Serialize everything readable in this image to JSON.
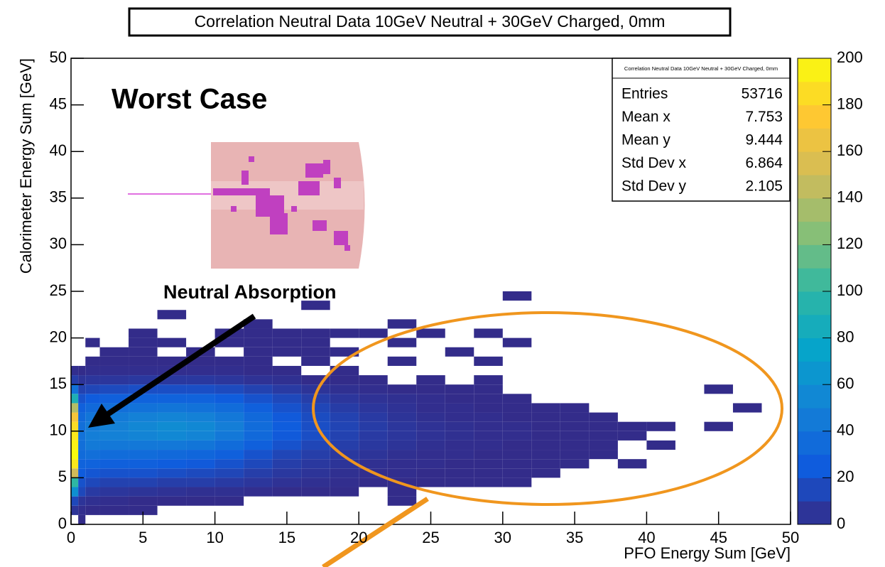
{
  "chart_data": {
    "type": "heatmap",
    "title": "Correlation Neutral Data 10GeV Neutral + 30GeV Charged, 0mm",
    "x_label": "PFO Energy Sum [GeV]",
    "y_label": "Calorimeter Energy Sum [GeV]",
    "xlim": [
      0,
      50
    ],
    "xticks": [
      0,
      5,
      10,
      15,
      20,
      25,
      30,
      35,
      40,
      45,
      50
    ],
    "ylim": [
      0,
      50
    ],
    "yticks": [
      0,
      5,
      10,
      15,
      20,
      25,
      30,
      35,
      40,
      45,
      50
    ],
    "zlim": [
      0,
      200
    ],
    "zticks": [
      0,
      20,
      40,
      60,
      80,
      100,
      120,
      140,
      160,
      180,
      200
    ],
    "palette": [
      "#352a87",
      "#0f5cdd",
      "#1481d6",
      "#06a4ca",
      "#2eb7a4",
      "#87bf77",
      "#d1bb59",
      "#fec832",
      "#f9fb0e"
    ],
    "xbins": [
      0,
      0.5,
      1,
      2,
      4,
      6,
      8,
      10,
      12,
      14,
      16,
      18,
      20,
      22,
      24,
      26,
      28,
      30,
      32,
      34,
      36,
      38,
      40,
      42,
      44,
      46,
      48,
      50
    ],
    "ybins": [
      0,
      1,
      2,
      3,
      4,
      5,
      6,
      7,
      8,
      9,
      10,
      11,
      12,
      13,
      14,
      15,
      16,
      17,
      18,
      19,
      20,
      21,
      22,
      23,
      24,
      25
    ],
    "z": [
      [
        0,
        1,
        0,
        0,
        0,
        0,
        0,
        0,
        0,
        0,
        0,
        0,
        0,
        0,
        0,
        0,
        0,
        0,
        0,
        0,
        0,
        0,
        0,
        0,
        0,
        0,
        0
      ],
      [
        5,
        2,
        1,
        1,
        1,
        0,
        0,
        0,
        0,
        0,
        0,
        0,
        0,
        0,
        0,
        0,
        0,
        0,
        0,
        0,
        0,
        0,
        0,
        0,
        0,
        0,
        0
      ],
      [
        15,
        5,
        3,
        2,
        1,
        1,
        1,
        1,
        0,
        0,
        0,
        0,
        0,
        1,
        0,
        0,
        0,
        0,
        0,
        0,
        0,
        0,
        0,
        0,
        0,
        0,
        0
      ],
      [
        60,
        15,
        8,
        6,
        5,
        4,
        3,
        3,
        2,
        1,
        1,
        1,
        0,
        1,
        0,
        0,
        0,
        0,
        0,
        0,
        0,
        0,
        0,
        0,
        0,
        0,
        0
      ],
      [
        100,
        20,
        15,
        12,
        12,
        10,
        10,
        8,
        6,
        4,
        3,
        2,
        1,
        1,
        1,
        1,
        1,
        1,
        0,
        0,
        0,
        0,
        0,
        0,
        0,
        0,
        0
      ],
      [
        150,
        25,
        22,
        20,
        20,
        18,
        16,
        14,
        10,
        7,
        5,
        3,
        2,
        2,
        1,
        1,
        1,
        1,
        1,
        0,
        0,
        0,
        0,
        0,
        0,
        0,
        0
      ],
      [
        190,
        30,
        30,
        28,
        28,
        26,
        24,
        20,
        15,
        10,
        7,
        5,
        3,
        2,
        2,
        1,
        1,
        1,
        1,
        1,
        0,
        1,
        0,
        0,
        0,
        0,
        0
      ],
      [
        200,
        35,
        38,
        36,
        36,
        34,
        32,
        28,
        20,
        14,
        10,
        7,
        5,
        3,
        2,
        2,
        1,
        1,
        1,
        1,
        1,
        0,
        0,
        0,
        0,
        0,
        0
      ],
      [
        195,
        38,
        45,
        44,
        44,
        44,
        42,
        36,
        28,
        20,
        14,
        10,
        7,
        5,
        3,
        2,
        2,
        1,
        1,
        1,
        1,
        0,
        1,
        0,
        0,
        0,
        0
      ],
      [
        190,
        40,
        48,
        50,
        52,
        55,
        52,
        44,
        34,
        24,
        18,
        12,
        8,
        6,
        4,
        3,
        2,
        2,
        1,
        1,
        1,
        1,
        0,
        0,
        0,
        0,
        0
      ],
      [
        185,
        38,
        46,
        50,
        54,
        58,
        55,
        48,
        36,
        26,
        18,
        13,
        9,
        6,
        4,
        3,
        2,
        2,
        1,
        1,
        1,
        1,
        1,
        0,
        1,
        0,
        0
      ],
      [
        170,
        34,
        42,
        46,
        50,
        52,
        50,
        44,
        34,
        24,
        17,
        12,
        8,
        5,
        3,
        2,
        2,
        1,
        1,
        1,
        1,
        0,
        0,
        0,
        0,
        0,
        0
      ],
      [
        140,
        28,
        34,
        38,
        40,
        42,
        40,
        36,
        28,
        20,
        14,
        9,
        6,
        4,
        2,
        2,
        1,
        1,
        1,
        1,
        0,
        0,
        0,
        0,
        0,
        1,
        0
      ],
      [
        90,
        20,
        25,
        28,
        30,
        30,
        30,
        26,
        20,
        15,
        10,
        6,
        4,
        3,
        2,
        1,
        1,
        1,
        0,
        0,
        0,
        0,
        0,
        0,
        0,
        0,
        0
      ],
      [
        40,
        12,
        14,
        16,
        18,
        18,
        18,
        16,
        12,
        8,
        5,
        3,
        2,
        1,
        1,
        1,
        1,
        0,
        0,
        0,
        0,
        0,
        0,
        0,
        1,
        0,
        0
      ],
      [
        10,
        5,
        6,
        6,
        7,
        7,
        7,
        6,
        4,
        3,
        1,
        1,
        1,
        0,
        1,
        0,
        1,
        0,
        0,
        0,
        0,
        0,
        0,
        0,
        0,
        0,
        0
      ],
      [
        2,
        1,
        2,
        2,
        2,
        2,
        2,
        2,
        1,
        1,
        0,
        1,
        0,
        0,
        0,
        0,
        0,
        0,
        0,
        0,
        0,
        0,
        0,
        0,
        0,
        0,
        0
      ],
      [
        0,
        0,
        1,
        1,
        1,
        1,
        1,
        1,
        1,
        0,
        1,
        0,
        0,
        1,
        0,
        0,
        1,
        0,
        0,
        0,
        0,
        0,
        0,
        0,
        0,
        0,
        0
      ],
      [
        0,
        0,
        0,
        1,
        1,
        0,
        1,
        0,
        1,
        1,
        1,
        1,
        0,
        0,
        0,
        1,
        0,
        0,
        0,
        0,
        0,
        0,
        0,
        0,
        0,
        0,
        0
      ],
      [
        0,
        0,
        1,
        0,
        1,
        1,
        0,
        1,
        1,
        1,
        1,
        0,
        0,
        1,
        0,
        0,
        0,
        1,
        0,
        0,
        0,
        0,
        0,
        0,
        0,
        0,
        0
      ],
      [
        0,
        0,
        0,
        0,
        1,
        0,
        0,
        1,
        1,
        1,
        1,
        1,
        1,
        0,
        1,
        0,
        1,
        0,
        0,
        0,
        0,
        0,
        0,
        0,
        0,
        0,
        0
      ],
      [
        0,
        0,
        0,
        0,
        0,
        0,
        0,
        0,
        1,
        0,
        0,
        0,
        0,
        1,
        0,
        0,
        0,
        0,
        0,
        0,
        0,
        0,
        0,
        0,
        0,
        0,
        0
      ],
      [
        0,
        0,
        0,
        0,
        0,
        1,
        0,
        0,
        0,
        0,
        0,
        0,
        0,
        0,
        0,
        0,
        0,
        0,
        0,
        0,
        0,
        0,
        0,
        0,
        0,
        0,
        0
      ],
      [
        0,
        0,
        0,
        0,
        0,
        0,
        0,
        0,
        0,
        0,
        1,
        0,
        0,
        0,
        0,
        0,
        0,
        0,
        0,
        0,
        0,
        0,
        0,
        0,
        0,
        0,
        0
      ],
      [
        0,
        0,
        0,
        0,
        0,
        0,
        0,
        0,
        0,
        0,
        0,
        0,
        0,
        0,
        0,
        0,
        0,
        1,
        0,
        0,
        0,
        0,
        0,
        0,
        0,
        0,
        0
      ]
    ],
    "stats": {
      "title": "Correlation Neutral Data 10GeV Neutral + 30GeV Charged, 0mm",
      "rows": [
        [
          "Entries",
          "53716"
        ],
        [
          "Mean x",
          "7.753"
        ],
        [
          "Mean y",
          "9.444"
        ],
        [
          "Std Dev x",
          "6.864"
        ],
        [
          "Std Dev y",
          "2.105"
        ]
      ]
    },
    "annotations": [
      "Worst Case",
      "Neutral Absorption"
    ]
  }
}
